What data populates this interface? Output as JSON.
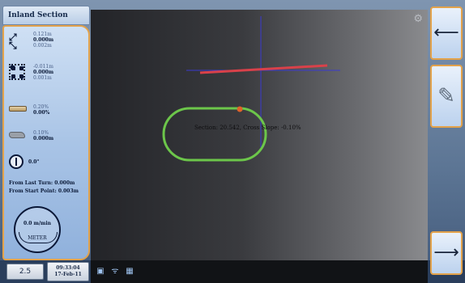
{
  "window": {
    "title": "Inland Section"
  },
  "left_panel": {
    "group1": {
      "icon": "row-arrows-icon",
      "lines": [
        "0.121m",
        "0.000m",
        "0.002m"
      ]
    },
    "group2": {
      "icon": "grid-points-icon",
      "lines": [
        "-0.011m",
        "0.000m",
        "0.001m"
      ]
    },
    "group3": {
      "icon": "blade-icon",
      "lines": [
        "0.20%",
        "0.00%"
      ]
    },
    "group4": {
      "icon": "material-icon",
      "lines": [
        "0.10%",
        "0.000m"
      ]
    },
    "compass": {
      "icon": "compass-icon",
      "value": "0.0°"
    },
    "distance_last_turn": "From Last Turn: 0.000m",
    "distance_start_point": "From Start Point: 0.003m",
    "speed": {
      "value": "0.0 m/min",
      "unit": "METER"
    }
  },
  "viewport": {
    "readout": "Section: 20.542, Cross Slope: -0.10%",
    "corner_icon": "settings-icon"
  },
  "bottom_bar": {
    "zoom": "2.5",
    "time": "09:33:04",
    "date": "17-Feb-11",
    "status_icons": [
      "machine-icon",
      "signal-icon",
      "chart-icon"
    ]
  },
  "right_rail": {
    "back": "back-arrow-icon",
    "edit": "pencil-icon",
    "next": "forward-arrow-icon"
  },
  "colors": {
    "panel_accent": "#e3a24a",
    "track_green": "#6cc64a",
    "line_red": "#d9414a",
    "axis_blue": "#3a3ad0",
    "marker": "#e0622a"
  }
}
